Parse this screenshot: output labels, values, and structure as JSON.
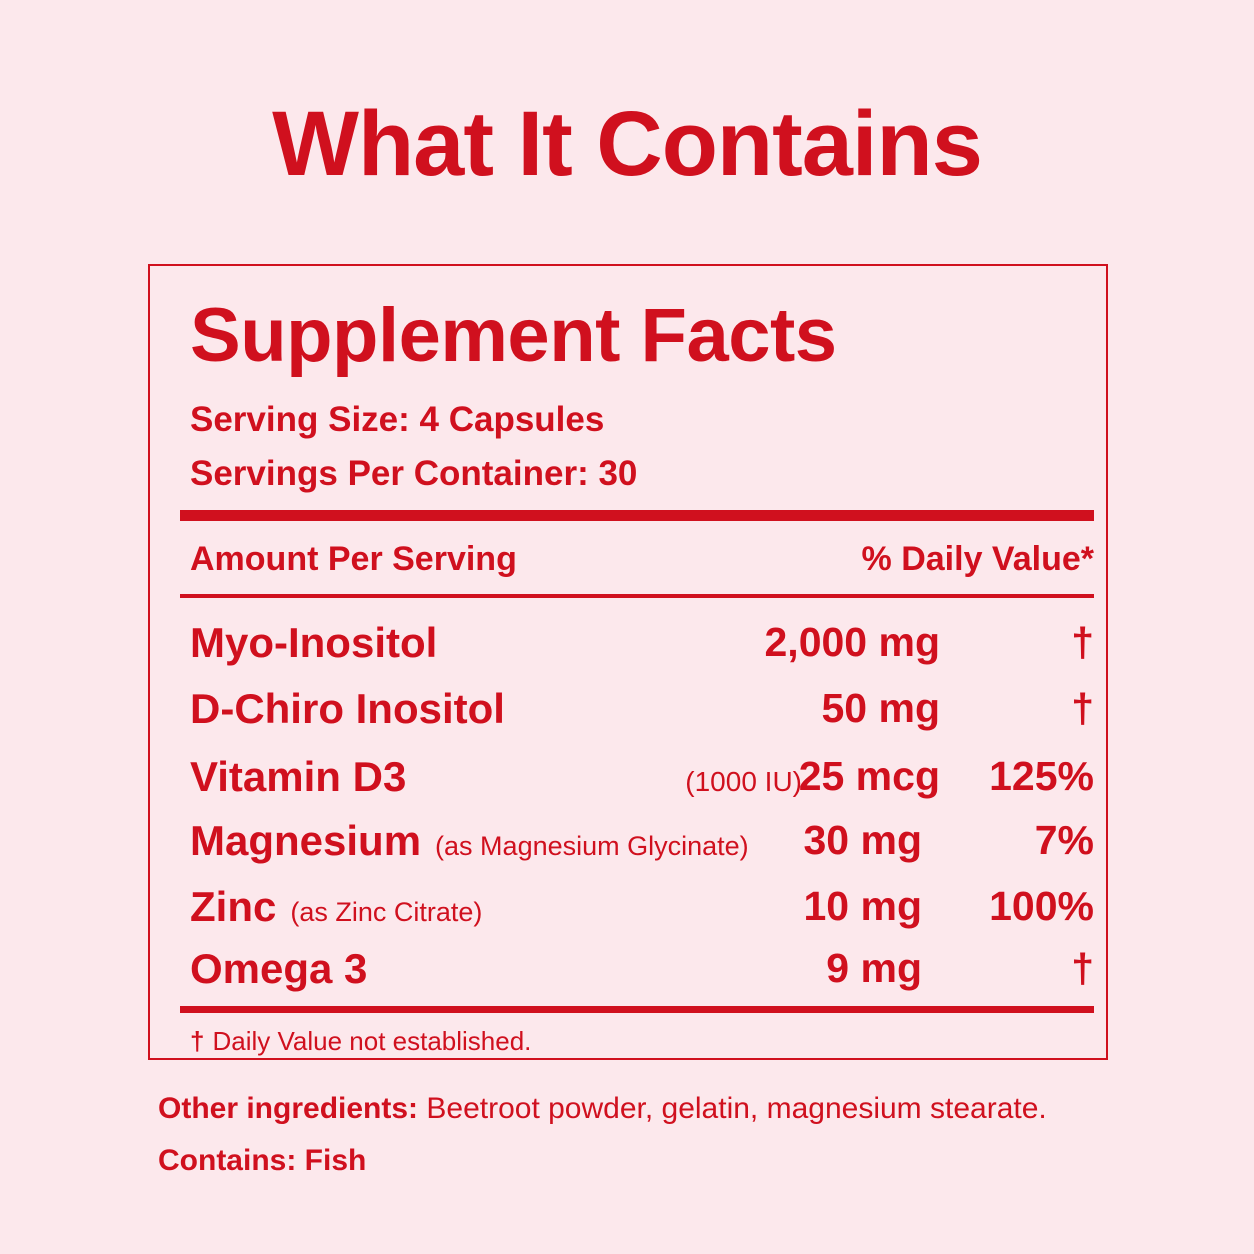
{
  "title": "What It Contains",
  "facts": {
    "heading": "Supplement Facts",
    "serving_size": "Serving Size: 4 Capsules",
    "servings_per_container": "Servings Per Container: 30",
    "amount_header": "Amount Per Serving",
    "dv_header": "% Daily Value*",
    "rows": [
      {
        "name": "Myo-Inositol",
        "note": "",
        "prefix": "",
        "amount": "2,000 mg",
        "dv": "†"
      },
      {
        "name": "D-Chiro Inositol",
        "note": "",
        "prefix": "",
        "amount": "50 mg",
        "dv": "†"
      },
      {
        "name": "Vitamin D3",
        "note": "",
        "prefix": "(1000 IU)",
        "amount": "25 mcg",
        "dv": "125%"
      },
      {
        "name": "Magnesium",
        "note": "(as Magnesium Glycinate)",
        "prefix": "",
        "amount": "30 mg",
        "dv": "7%"
      },
      {
        "name": "Zinc",
        "note": "(as Zinc Citrate)",
        "prefix": "",
        "amount": "10 mg",
        "dv": "100%"
      },
      {
        "name": "Omega 3",
        "note": "",
        "prefix": "",
        "amount": "9 mg",
        "dv": "†"
      }
    ],
    "footnote_symbol": "†",
    "footnote_text": "Daily Value not established."
  },
  "other_ingredients": {
    "label": "Other ingredients:",
    "text": "Beetroot powder, gelatin, magnesium stearate."
  },
  "contains": "Contains: Fish",
  "colors": {
    "background": "#fce8ec",
    "accent": "#d0101e"
  }
}
